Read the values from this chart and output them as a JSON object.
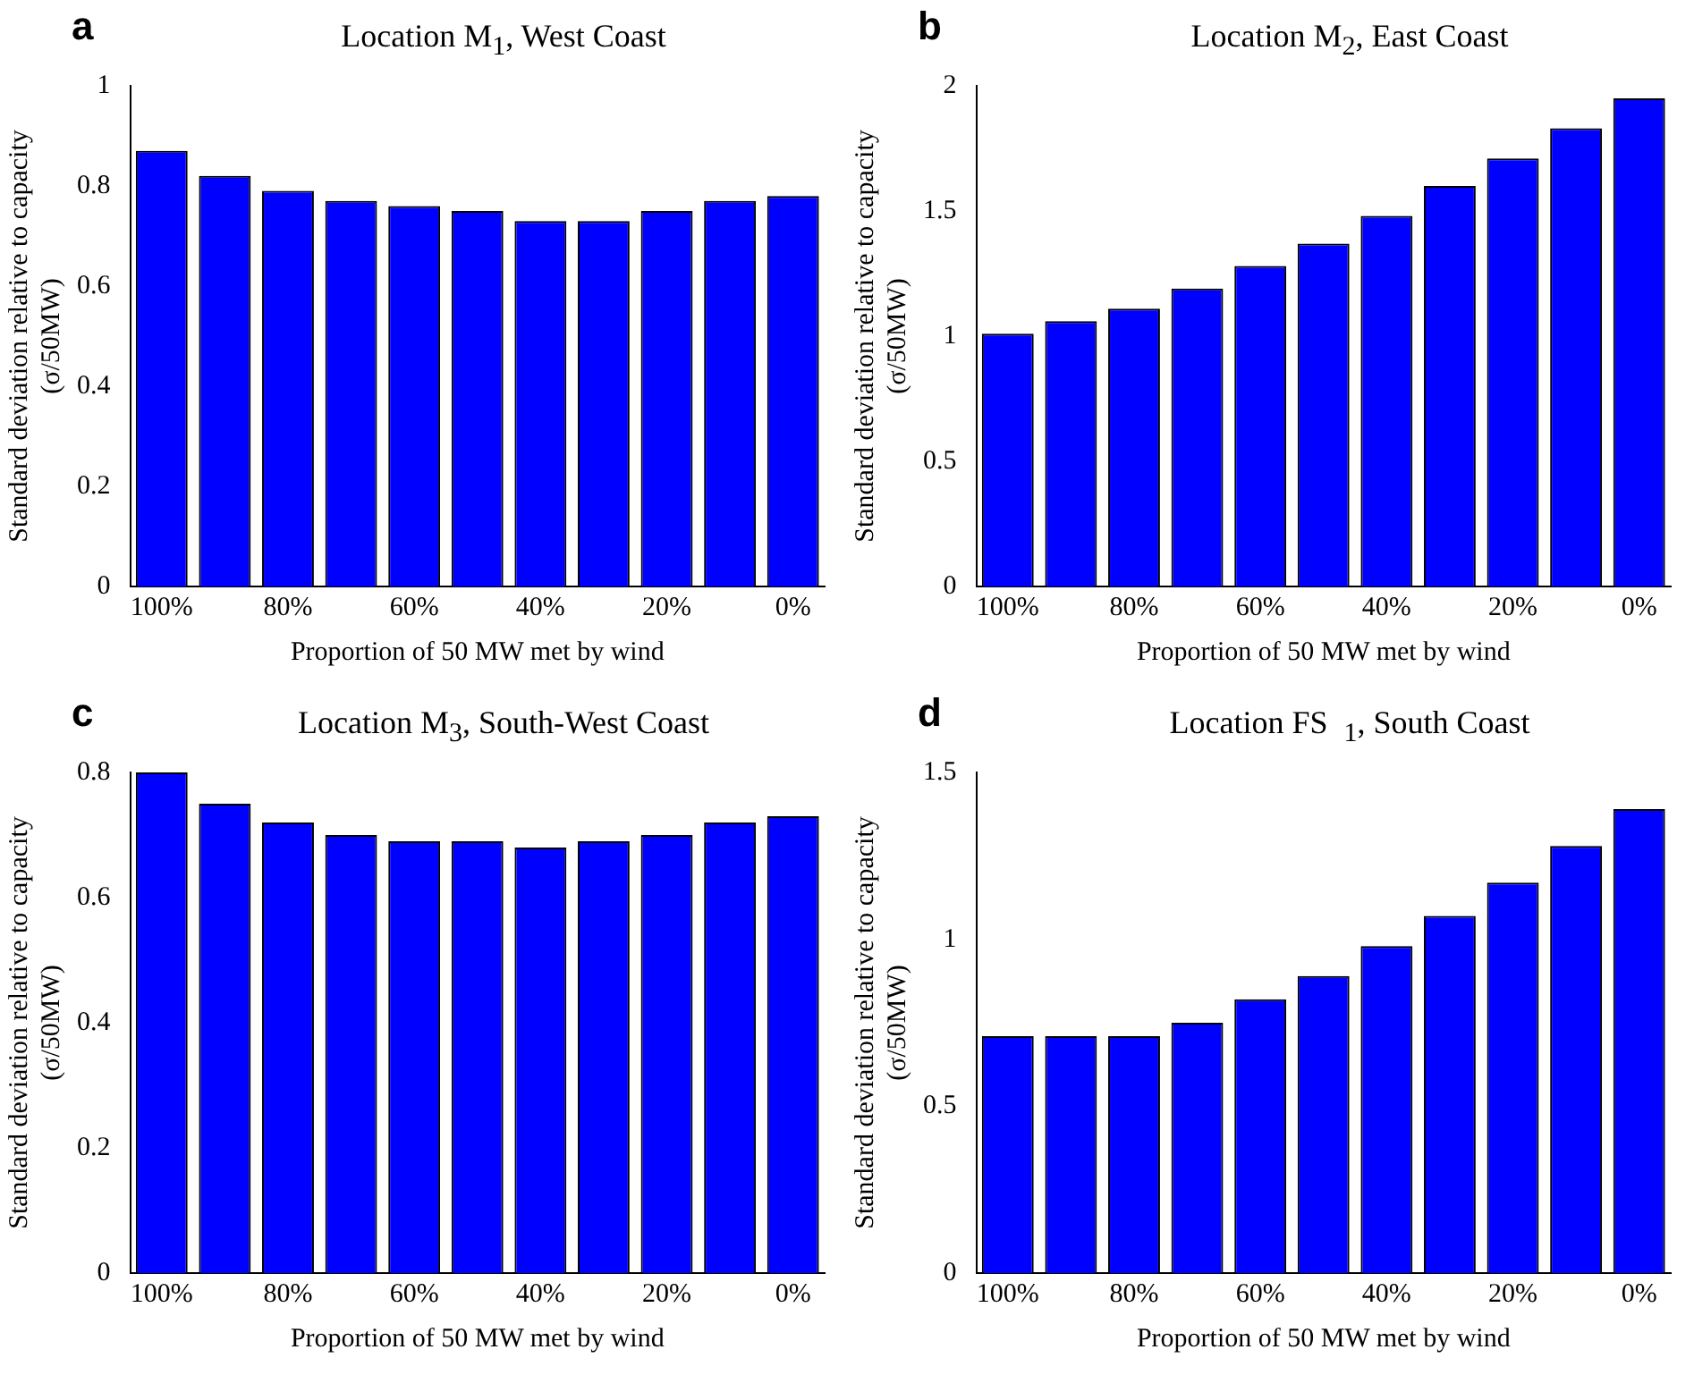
{
  "chart_data": [
    {
      "type": "bar",
      "title": "Location M$_{1}$, West Coast",
      "annotations": [
        "a"
      ],
      "xlabel": "Proportion of 50 MW met by wind",
      "ylabel": "Standard deviation relative to capacity\n(σ/50MW)",
      "categories": [
        "100%",
        null,
        "80%",
        null,
        "60%",
        null,
        "40%",
        null,
        "20%",
        null,
        "0%"
      ],
      "color": "#0000ff",
      "values": [
        0.87,
        0.82,
        0.79,
        0.77,
        0.76,
        0.75,
        0.73,
        0.73,
        0.75,
        0.77,
        0.78
      ],
      "ylim": [
        0,
        1
      ],
      "yticks": [
        0,
        0.2,
        0.4,
        0.6,
        0.8,
        1
      ],
      "grid": false,
      "legend": false
    },
    {
      "type": "bar",
      "title": "Location M$_{2}$, East Coast",
      "annotations": [
        "b"
      ],
      "xlabel": "Proportion of 50 MW met by wind",
      "ylabel": "Standard deviation relative to capacity\n(σ/50MW)",
      "categories": [
        "100%",
        null,
        "80%",
        null,
        "60%",
        null,
        "40%",
        null,
        "20%",
        null,
        "0%"
      ],
      "color": "#0000ff",
      "values": [
        1.01,
        1.06,
        1.11,
        1.19,
        1.28,
        1.37,
        1.48,
        1.6,
        1.71,
        1.83,
        1.95
      ],
      "ylim": [
        0,
        2
      ],
      "yticks": [
        0,
        0.5,
        1,
        1.5,
        2
      ],
      "grid": false,
      "legend": false
    },
    {
      "type": "bar",
      "title": "Location M$_{3}$, South-West Coast",
      "annotations": [
        "c"
      ],
      "xlabel": "Proportion of 50 MW met by wind",
      "ylabel": "Standard deviation relative to capacity\n(σ/50MW)",
      "categories": [
        "100%",
        null,
        "80%",
        null,
        "60%",
        null,
        "40%",
        null,
        "20%",
        null,
        "0%"
      ],
      "color": "#0000ff",
      "values": [
        0.8,
        0.75,
        0.72,
        0.7,
        0.69,
        0.69,
        0.68,
        0.69,
        0.7,
        0.72,
        0.73
      ],
      "ylim": [
        0,
        0.8
      ],
      "yticks": [
        0,
        0.2,
        0.4,
        0.6,
        0.8
      ],
      "grid": false,
      "legend": false
    },
    {
      "type": "bar",
      "title": "Location FS  $_{1}$, South Coast",
      "annotations": [
        "d"
      ],
      "xlabel": "Proportion of 50 MW met by wind",
      "ylabel": "Standard deviation relative to capacity\n(σ/50MW)",
      "categories": [
        "100%",
        null,
        "80%",
        null,
        "60%",
        null,
        "40%",
        null,
        "20%",
        null,
        "0%"
      ],
      "color": "#0000ff",
      "values": [
        0.71,
        0.71,
        0.71,
        0.75,
        0.82,
        0.89,
        0.98,
        1.07,
        1.17,
        1.28,
        1.39
      ],
      "ylim": [
        0,
        1.5
      ],
      "yticks": [
        0,
        0.5,
        1,
        1.5
      ],
      "grid": false,
      "legend": false
    }
  ]
}
